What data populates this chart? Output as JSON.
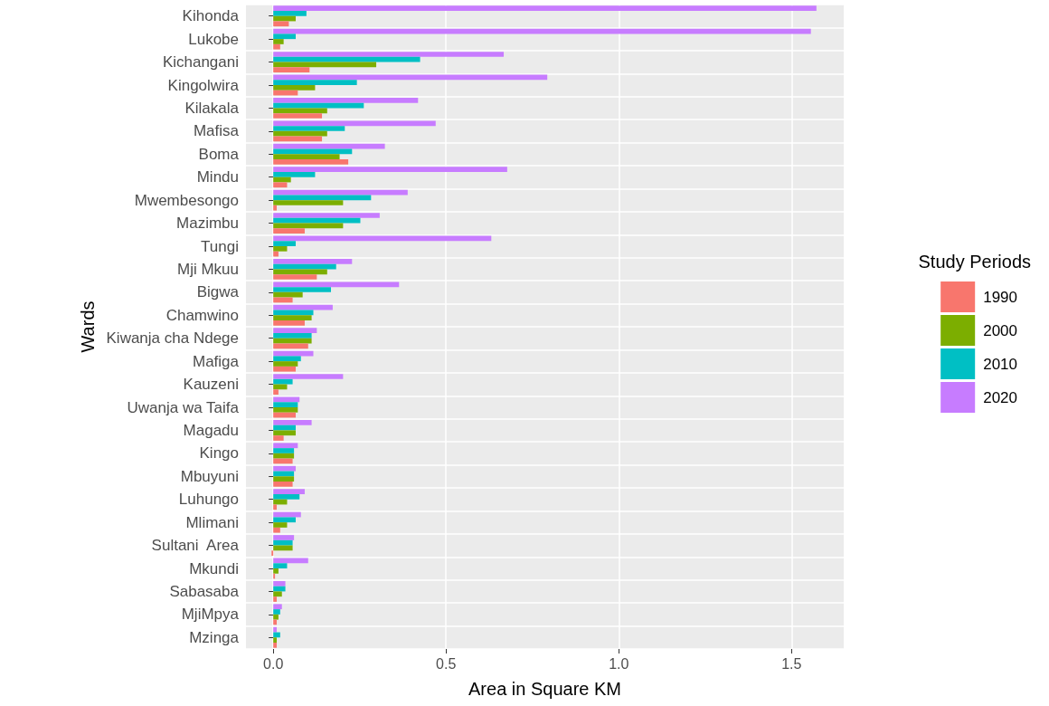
{
  "chart_data": {
    "type": "bar",
    "orientation": "horizontal",
    "xlabel": "Area in Square KM",
    "ylabel": "Wards",
    "legend_title": "Study Periods",
    "legend": "right",
    "grid": true,
    "categories": [
      "Kihonda",
      "Lukobe",
      "Kichangani",
      "Kingolwira",
      "Kilakala",
      "Mafisa",
      "Boma",
      "Mindu",
      "Mwembesongo",
      "Mazimbu",
      "Tungi",
      "Mji Mkuu",
      "Bigwa",
      "Chamwino",
      "Kiwanja cha Ndege",
      "Mafiga",
      "Kauzeni",
      "Uwanja wa Taifa",
      "Magadu",
      "Kingo",
      "Mbuyuni",
      "Luhungo",
      "Mlimani",
      "Sultani  Area",
      "Mkundi",
      "Sabasaba",
      "MjiMpya",
      "Mzinga"
    ],
    "xlim": [
      -0.079,
      1.651
    ],
    "xticks": [
      {
        "value": 0,
        "label": "0.0"
      },
      {
        "value": 0.5,
        "label": "0.5"
      },
      {
        "value": 1,
        "label": "1.0"
      },
      {
        "value": 1.5,
        "label": "1.5"
      }
    ],
    "series": [
      {
        "name": "1990",
        "color": "#f8766d",
        "values": [
          0.045,
          0.02,
          0.105,
          0.071,
          0.141,
          0.141,
          0.217,
          0.04,
          0.01,
          0.091,
          0.015,
          0.126,
          0.056,
          0.091,
          0.101,
          0.065,
          0.015,
          0.065,
          0.03,
          0.056,
          0.056,
          0.01,
          0.02,
          -0.005,
          0.005,
          0.01,
          0.01,
          0.01
        ]
      },
      {
        "name": "2000",
        "color": "#7cae00",
        "values": [
          0.065,
          0.03,
          0.298,
          0.121,
          0.156,
          0.156,
          0.192,
          0.051,
          0.202,
          0.202,
          0.04,
          0.156,
          0.085,
          0.111,
          0.111,
          0.071,
          0.04,
          0.071,
          0.065,
          0.06,
          0.06,
          0.04,
          0.04,
          0.056,
          0.015,
          0.025,
          0.015,
          0.01
        ]
      },
      {
        "name": "2010",
        "color": "#00bfc4",
        "values": [
          0.096,
          0.065,
          0.425,
          0.242,
          0.262,
          0.207,
          0.228,
          0.121,
          0.283,
          0.252,
          0.065,
          0.182,
          0.167,
          0.116,
          0.111,
          0.08,
          0.056,
          0.071,
          0.065,
          0.06,
          0.06,
          0.076,
          0.065,
          0.056,
          0.04,
          0.035,
          0.02,
          0.02
        ]
      },
      {
        "name": "2020",
        "color": "#c77cff",
        "values": [
          1.572,
          1.556,
          0.667,
          0.793,
          0.419,
          0.47,
          0.323,
          0.677,
          0.389,
          0.308,
          0.631,
          0.228,
          0.364,
          0.172,
          0.126,
          0.116,
          0.202,
          0.076,
          0.111,
          0.071,
          0.065,
          0.091,
          0.08,
          0.06,
          0.101,
          0.035,
          0.025,
          0.01
        ]
      }
    ]
  }
}
